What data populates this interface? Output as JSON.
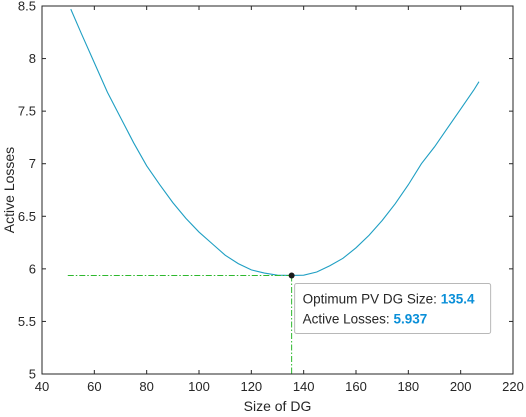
{
  "chart_data": {
    "type": "line",
    "xlabel": "Size of DG",
    "ylabel": "Active Losses",
    "xlim": [
      40,
      220
    ],
    "ylim": [
      5,
      8.5
    ],
    "xticks": [
      "40",
      "60",
      "80",
      "100",
      "120",
      "140",
      "160",
      "180",
      "200",
      "220"
    ],
    "yticks": [
      "5",
      "5.5",
      "6",
      "6.5",
      "7",
      "7.5",
      "8",
      "8.5"
    ],
    "grid": false,
    "series": [
      {
        "color": "#1f9fc3",
        "x": [
          51,
          55,
          60,
          65,
          70,
          75,
          80,
          85,
          90,
          95,
          100,
          105,
          110,
          115,
          120,
          125,
          130,
          135,
          135.4,
          140,
          145,
          150,
          155,
          160,
          165,
          170,
          175,
          180,
          185,
          190,
          195,
          200,
          205,
          207
        ],
        "y": [
          8.47,
          8.24,
          7.96,
          7.68,
          7.44,
          7.2,
          6.98,
          6.8,
          6.63,
          6.48,
          6.35,
          6.24,
          6.13,
          6.05,
          5.99,
          5.96,
          5.94,
          5.937,
          5.937,
          5.94,
          5.97,
          6.03,
          6.1,
          6.2,
          6.32,
          6.46,
          6.62,
          6.8,
          7.0,
          7.16,
          7.34,
          7.52,
          7.7,
          7.78
        ]
      }
    ],
    "optimum": {
      "x": 135.4,
      "y": 5.937
    },
    "guide_color": "#2eb82e",
    "datatip": {
      "line1_label": "Optimum PV DG Size:",
      "line1_value": "135.4",
      "line2_label": "Active Losses:",
      "line2_value": "5.937",
      "value_color": "#0a8fd8"
    }
  }
}
